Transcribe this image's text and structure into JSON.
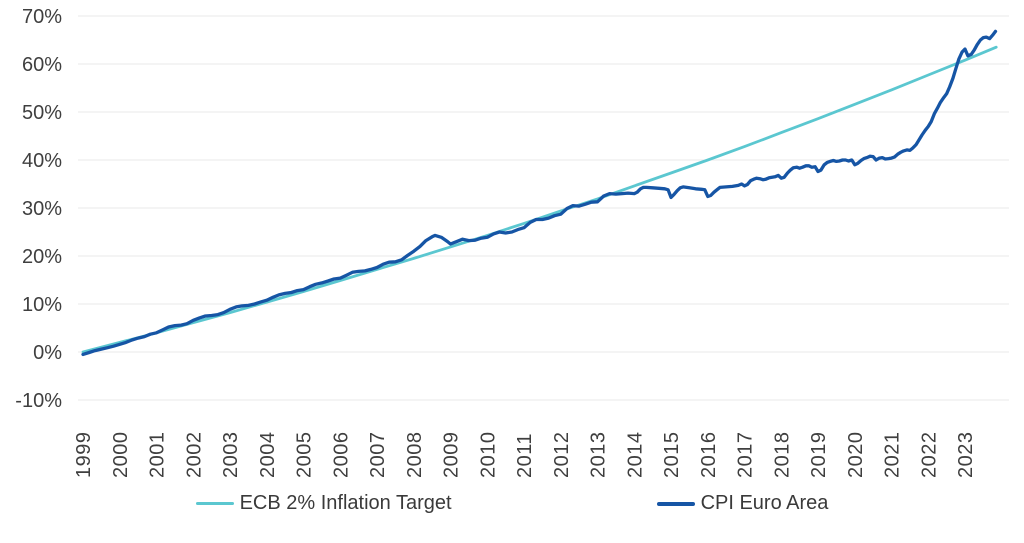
{
  "page": {
    "background": "#ffffff"
  },
  "chart_data": {
    "type": "line",
    "title": "",
    "xlabel": "",
    "ylabel": "",
    "grid": {
      "horizontal": true,
      "vertical": false,
      "color": "#eaeaea"
    },
    "axis_text_color": "#3f3f3f",
    "legend_position": "bottom-center",
    "x_axis": {
      "labels": [
        "1999",
        "2000",
        "2001",
        "2002",
        "2003",
        "2004",
        "2005",
        "2006",
        "2007",
        "2008",
        "2009",
        "2010",
        "2011",
        "2012",
        "2013",
        "2014",
        "2015",
        "2016",
        "2017",
        "2018",
        "2019",
        "2020",
        "2021",
        "2022",
        "2023"
      ],
      "range": [
        1999,
        2023.9
      ]
    },
    "y_axis": {
      "ticks": [
        {
          "label": "70%",
          "value": 70
        },
        {
          "label": "60%",
          "value": 60
        },
        {
          "label": "50%",
          "value": 50
        },
        {
          "label": "40%",
          "value": 40
        },
        {
          "label": "30%",
          "value": 30
        },
        {
          "label": "20%",
          "value": 20
        },
        {
          "label": "10%",
          "value": 10
        },
        {
          "label": "0%",
          "value": 0
        },
        {
          "label": "-10%",
          "value": -10
        }
      ],
      "range": [
        -10,
        70
      ]
    },
    "series": [
      {
        "name": "ECB 2% Inflation Target",
        "color": "#5BC7D0",
        "stroke_width": 2.8,
        "points": [
          [
            1999,
            0
          ],
          [
            2000,
            2
          ],
          [
            2001,
            4
          ],
          [
            2002,
            6.1
          ],
          [
            2003,
            8.2
          ],
          [
            2004,
            10.4
          ],
          [
            2005,
            12.6
          ],
          [
            2006,
            14.9
          ],
          [
            2007,
            17.2
          ],
          [
            2008,
            19.5
          ],
          [
            2009,
            21.9
          ],
          [
            2010,
            24.3
          ],
          [
            2011,
            26.8
          ],
          [
            2012,
            29.4
          ],
          [
            2013,
            31.9
          ],
          [
            2014,
            34.6
          ],
          [
            2015,
            37.3
          ],
          [
            2016,
            40
          ],
          [
            2017,
            42.8
          ],
          [
            2018,
            45.7
          ],
          [
            2019,
            48.6
          ],
          [
            2020,
            51.6
          ],
          [
            2021,
            54.6
          ],
          [
            2022,
            57.7
          ],
          [
            2023,
            60.8
          ],
          [
            2023.85,
            63.5
          ]
        ]
      },
      {
        "name": "CPI Euro Area",
        "color": "#1655A5",
        "stroke_width": 3.3,
        "points": [
          [
            1999,
            -0.5
          ],
          [
            1999.17,
            -0.1
          ],
          [
            1999.33,
            0.3
          ],
          [
            1999.5,
            0.6
          ],
          [
            1999.67,
            0.9
          ],
          [
            1999.83,
            1.2
          ],
          [
            2000,
            1.6
          ],
          [
            2000.17,
            2
          ],
          [
            2000.33,
            2.5
          ],
          [
            2000.5,
            2.9
          ],
          [
            2000.67,
            3.2
          ],
          [
            2000.83,
            3.7
          ],
          [
            2001,
            4
          ],
          [
            2001.17,
            4.6
          ],
          [
            2001.33,
            5.2
          ],
          [
            2001.5,
            5.5
          ],
          [
            2001.67,
            5.6
          ],
          [
            2001.83,
            5.9
          ],
          [
            2002,
            6.6
          ],
          [
            2002.17,
            7.1
          ],
          [
            2002.33,
            7.5
          ],
          [
            2002.5,
            7.6
          ],
          [
            2002.67,
            7.8
          ],
          [
            2002.83,
            8.2
          ],
          [
            2003,
            8.9
          ],
          [
            2003.17,
            9.4
          ],
          [
            2003.33,
            9.6
          ],
          [
            2003.5,
            9.7
          ],
          [
            2003.67,
            10
          ],
          [
            2003.83,
            10.4
          ],
          [
            2004,
            10.8
          ],
          [
            2004.17,
            11.4
          ],
          [
            2004.33,
            11.9
          ],
          [
            2004.5,
            12.2
          ],
          [
            2004.67,
            12.4
          ],
          [
            2004.83,
            12.8
          ],
          [
            2005,
            13
          ],
          [
            2005.17,
            13.6
          ],
          [
            2005.33,
            14.1
          ],
          [
            2005.5,
            14.4
          ],
          [
            2005.67,
            14.8
          ],
          [
            2005.83,
            15.2
          ],
          [
            2006,
            15.4
          ],
          [
            2006.17,
            16
          ],
          [
            2006.33,
            16.6
          ],
          [
            2006.5,
            16.8
          ],
          [
            2006.67,
            16.9
          ],
          [
            2006.83,
            17.2
          ],
          [
            2007,
            17.6
          ],
          [
            2007.17,
            18.3
          ],
          [
            2007.33,
            18.7
          ],
          [
            2007.5,
            18.8
          ],
          [
            2007.67,
            19.2
          ],
          [
            2007.83,
            20.1
          ],
          [
            2008,
            21
          ],
          [
            2008.17,
            22
          ],
          [
            2008.33,
            23.2
          ],
          [
            2008.5,
            24
          ],
          [
            2008.58,
            24.3
          ],
          [
            2008.75,
            23.9
          ],
          [
            2008.92,
            23
          ],
          [
            2009,
            22.5
          ],
          [
            2009.17,
            23
          ],
          [
            2009.33,
            23.5
          ],
          [
            2009.5,
            23.2
          ],
          [
            2009.67,
            23.3
          ],
          [
            2009.83,
            23.7
          ],
          [
            2010,
            23.9
          ],
          [
            2010.17,
            24.6
          ],
          [
            2010.33,
            25
          ],
          [
            2010.5,
            24.8
          ],
          [
            2010.67,
            25
          ],
          [
            2010.83,
            25.5
          ],
          [
            2011,
            25.9
          ],
          [
            2011.17,
            27
          ],
          [
            2011.33,
            27.6
          ],
          [
            2011.5,
            27.6
          ],
          [
            2011.67,
            27.9
          ],
          [
            2011.83,
            28.4
          ],
          [
            2012,
            28.7
          ],
          [
            2012.17,
            29.9
          ],
          [
            2012.33,
            30.5
          ],
          [
            2012.5,
            30.4
          ],
          [
            2012.67,
            30.8
          ],
          [
            2012.83,
            31.2
          ],
          [
            2013,
            31.3
          ],
          [
            2013.17,
            32.5
          ],
          [
            2013.33,
            33
          ],
          [
            2013.5,
            32.9
          ],
          [
            2013.67,
            33
          ],
          [
            2013.83,
            33.1
          ],
          [
            2014,
            33
          ],
          [
            2014.08,
            33.3
          ],
          [
            2014.17,
            34
          ],
          [
            2014.25,
            34.3
          ],
          [
            2014.33,
            34.3
          ],
          [
            2014.5,
            34.2
          ],
          [
            2014.67,
            34.1
          ],
          [
            2014.83,
            34
          ],
          [
            2014.92,
            33.8
          ],
          [
            2015,
            32.2
          ],
          [
            2015.08,
            32.8
          ],
          [
            2015.17,
            33.6
          ],
          [
            2015.25,
            34.2
          ],
          [
            2015.33,
            34.4
          ],
          [
            2015.5,
            34.2
          ],
          [
            2015.67,
            34
          ],
          [
            2015.83,
            33.9
          ],
          [
            2015.92,
            33.8
          ],
          [
            2016,
            32.4
          ],
          [
            2016.08,
            32.6
          ],
          [
            2016.17,
            33.3
          ],
          [
            2016.25,
            33.8
          ],
          [
            2016.33,
            34.3
          ],
          [
            2016.5,
            34.4
          ],
          [
            2016.67,
            34.5
          ],
          [
            2016.83,
            34.7
          ],
          [
            2016.92,
            35
          ],
          [
            2017,
            34.6
          ],
          [
            2017.08,
            34.9
          ],
          [
            2017.17,
            35.7
          ],
          [
            2017.25,
            36
          ],
          [
            2017.33,
            36.2
          ],
          [
            2017.42,
            36.1
          ],
          [
            2017.5,
            35.9
          ],
          [
            2017.58,
            36
          ],
          [
            2017.67,
            36.3
          ],
          [
            2017.75,
            36.4
          ],
          [
            2017.83,
            36.5
          ],
          [
            2017.92,
            36.8
          ],
          [
            2018,
            36.2
          ],
          [
            2018.08,
            36.4
          ],
          [
            2018.17,
            37.3
          ],
          [
            2018.25,
            37.9
          ],
          [
            2018.33,
            38.4
          ],
          [
            2018.42,
            38.5
          ],
          [
            2018.5,
            38.3
          ],
          [
            2018.58,
            38.5
          ],
          [
            2018.67,
            38.8
          ],
          [
            2018.75,
            38.8
          ],
          [
            2018.83,
            38.5
          ],
          [
            2018.92,
            38.6
          ],
          [
            2019,
            37.6
          ],
          [
            2019.08,
            37.9
          ],
          [
            2019.17,
            39
          ],
          [
            2019.25,
            39.5
          ],
          [
            2019.33,
            39.7
          ],
          [
            2019.42,
            39.9
          ],
          [
            2019.5,
            39.7
          ],
          [
            2019.58,
            39.8
          ],
          [
            2019.67,
            40
          ],
          [
            2019.75,
            40
          ],
          [
            2019.83,
            39.8
          ],
          [
            2019.92,
            40
          ],
          [
            2020,
            39
          ],
          [
            2020.08,
            39.3
          ],
          [
            2020.17,
            39.9
          ],
          [
            2020.25,
            40.3
          ],
          [
            2020.33,
            40.5
          ],
          [
            2020.42,
            40.8
          ],
          [
            2020.5,
            40.7
          ],
          [
            2020.58,
            40
          ],
          [
            2020.67,
            40.4
          ],
          [
            2020.75,
            40.5
          ],
          [
            2020.83,
            40.2
          ],
          [
            2020.92,
            40.3
          ],
          [
            2021,
            40.4
          ],
          [
            2021.08,
            40.6
          ],
          [
            2021.17,
            41.2
          ],
          [
            2021.25,
            41.6
          ],
          [
            2021.33,
            41.9
          ],
          [
            2021.42,
            42.1
          ],
          [
            2021.5,
            42
          ],
          [
            2021.58,
            42.5
          ],
          [
            2021.67,
            43.2
          ],
          [
            2021.75,
            44.2
          ],
          [
            2021.83,
            45.2
          ],
          [
            2021.92,
            46.2
          ],
          [
            2022,
            47
          ],
          [
            2022.08,
            48
          ],
          [
            2022.17,
            49.7
          ],
          [
            2022.25,
            50.8
          ],
          [
            2022.33,
            52
          ],
          [
            2022.42,
            53
          ],
          [
            2022.5,
            53.8
          ],
          [
            2022.58,
            55.2
          ],
          [
            2022.67,
            57
          ],
          [
            2022.75,
            59
          ],
          [
            2022.83,
            61
          ],
          [
            2022.92,
            62.5
          ],
          [
            2023,
            63.1
          ],
          [
            2023.08,
            61.7
          ],
          [
            2023.17,
            62
          ],
          [
            2023.25,
            62.9
          ],
          [
            2023.33,
            64
          ],
          [
            2023.42,
            65
          ],
          [
            2023.5,
            65.5
          ],
          [
            2023.58,
            65.6
          ],
          [
            2023.67,
            65.3
          ],
          [
            2023.75,
            66
          ],
          [
            2023.83,
            66.8
          ]
        ]
      }
    ]
  }
}
